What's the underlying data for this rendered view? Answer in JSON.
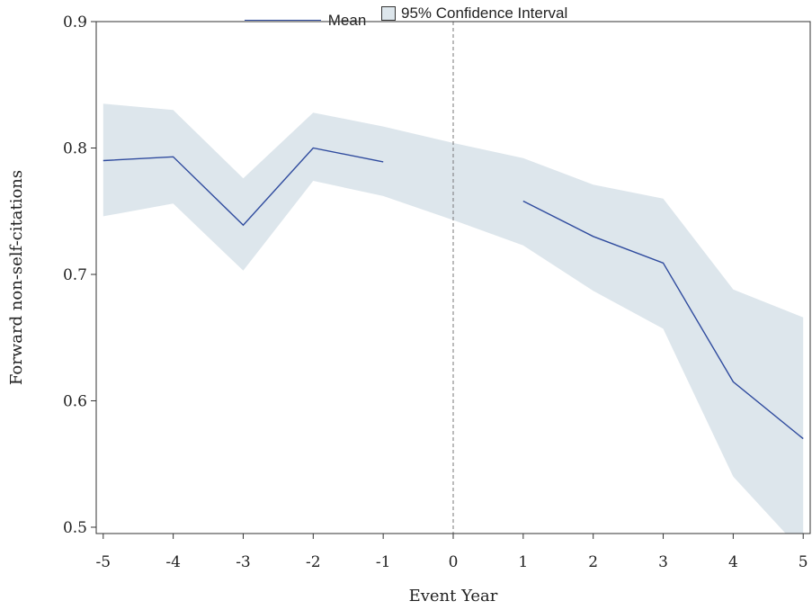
{
  "chart_data": {
    "type": "line",
    "title": "",
    "xlabel": "Event Year",
    "ylabel": "Forward non-self-citations",
    "x_ticks": [
      "-5",
      "-4",
      "-3",
      "-2",
      "-1",
      "0",
      "1",
      "2",
      "3",
      "4",
      "5"
    ],
    "y_ticks": [
      "0.5",
      "0.6",
      "0.7",
      "0.8",
      "0.9"
    ],
    "xlim": [
      -5.1,
      5.1
    ],
    "ylim": [
      0.495,
      0.9
    ],
    "vline_x": 0,
    "legend": {
      "position": "top-center",
      "entries": [
        "Mean",
        "95% Confidence Interval"
      ]
    },
    "colors": {
      "mean": "#2f4b9e",
      "ci_fill": "#dde6ec",
      "axis": "#333333",
      "vline": "#777777"
    },
    "series": [
      {
        "name": "Mean",
        "x": [
          -5,
          -4,
          -3,
          -2,
          -1,
          0,
          1,
          2,
          3,
          4,
          5
        ],
        "values": [
          0.79,
          0.793,
          0.739,
          0.8,
          0.789,
          null,
          0.758,
          0.73,
          0.709,
          0.615,
          0.57
        ]
      }
    ],
    "confidence_interval": {
      "name": "95% Confidence Interval",
      "x": [
        -5,
        -4,
        -3,
        -2,
        -1,
        0,
        1,
        2,
        3,
        4,
        5
      ],
      "lower": [
        0.746,
        0.756,
        0.703,
        0.774,
        0.762,
        0.743,
        0.723,
        0.687,
        0.657,
        0.54,
        0.48
      ],
      "upper": [
        0.835,
        0.83,
        0.776,
        0.828,
        0.817,
        0.804,
        0.792,
        0.771,
        0.76,
        0.688,
        0.666
      ]
    }
  }
}
